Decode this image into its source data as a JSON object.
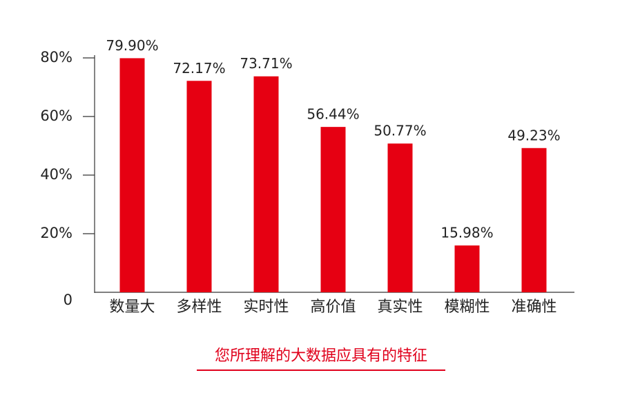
{
  "chart_data": {
    "type": "bar",
    "title": "您所理解的大数据应具有的特征",
    "categories": [
      "数量大",
      "多样性",
      "实时性",
      "高价值",
      "真实性",
      "模糊性",
      "准确性"
    ],
    "values": [
      79.9,
      72.17,
      73.71,
      56.44,
      50.77,
      15.98,
      49.23
    ],
    "value_labels": [
      "79.90%",
      "72.17%",
      "73.71%",
      "56.44%",
      "50.77%",
      "15.98%",
      "49.23%"
    ],
    "color": "#e60012",
    "ylim": [
      0,
      80
    ],
    "yticks": [
      0,
      {
        "value": 20,
        "label": "20%"
      },
      {
        "value": 40,
        "label": "40%"
      },
      {
        "value": 60,
        "label": "60%"
      },
      {
        "value": 80,
        "label": "80%"
      }
    ],
    "grid": false
  }
}
